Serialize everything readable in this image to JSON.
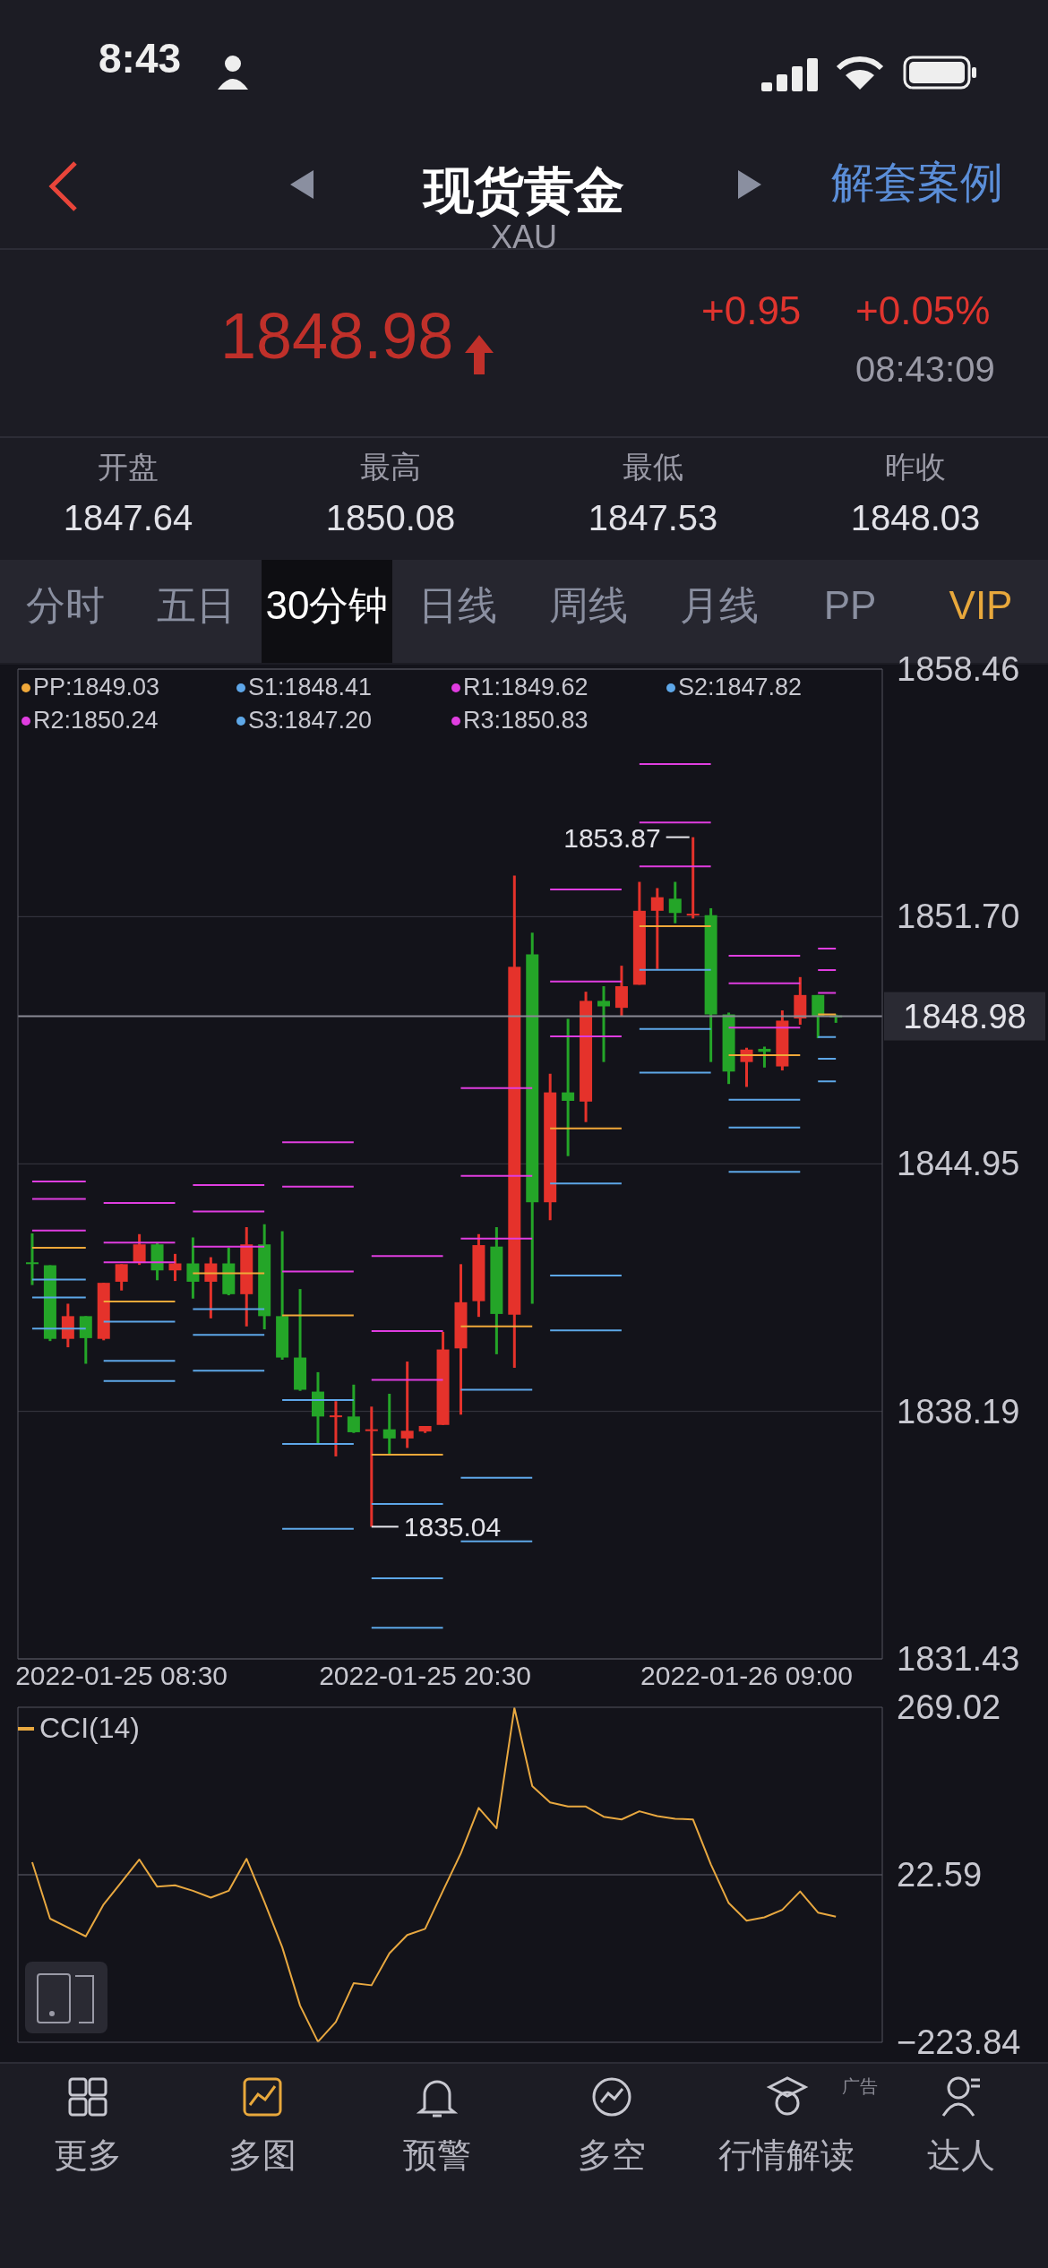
{
  "chart_data": [
    {
      "type": "candlestick",
      "title": "现货黄金",
      "subtitle": "XAU",
      "categories": [
        null,
        null,
        null,
        null,
        null,
        "2022-01-25 08:30",
        null,
        null,
        null,
        null,
        null,
        null,
        null,
        null,
        null,
        null,
        null,
        null,
        null,
        null,
        null,
        null,
        "2022-01-25 20:30",
        null,
        null,
        null,
        null,
        null,
        null,
        null,
        null,
        null,
        null,
        null,
        null,
        null,
        null,
        null,
        null,
        null,
        "2022-01-26 09:00",
        null,
        null,
        null,
        null,
        null
      ],
      "ohlc": [
        [
          1842.26,
          1843.05,
          1841.64,
          1842.22
        ],
        [
          1842.18,
          1842.18,
          1840.11,
          1840.17
        ],
        [
          1840.17,
          1841.13,
          1839.94,
          1840.79
        ],
        [
          1840.79,
          1840.79,
          1839.49,
          1840.19
        ],
        [
          1840.17,
          1841.7,
          1840.13,
          1841.7
        ],
        [
          1841.73,
          1842.21,
          1841.49,
          1842.21
        ],
        [
          1842.24,
          1843.03,
          1842.19,
          1842.75
        ],
        [
          1842.75,
          1842.81,
          1841.77,
          1842.04
        ],
        [
          1842.04,
          1842.49,
          1841.75,
          1842.23
        ],
        [
          1842.23,
          1842.94,
          1841.27,
          1841.73
        ],
        [
          1841.73,
          1842.4,
          1840.73,
          1842.23
        ],
        [
          1842.23,
          1842.66,
          1841.36,
          1841.39
        ],
        [
          1841.39,
          1843.22,
          1840.51,
          1842.75
        ],
        [
          1842.75,
          1843.3,
          1840.43,
          1840.79
        ],
        [
          1840.79,
          1843.11,
          1839.6,
          1839.66
        ],
        [
          1839.66,
          1841.53,
          1838.75,
          1838.78
        ],
        [
          1838.73,
          1839.26,
          1837.28,
          1838.05
        ],
        [
          1838.04,
          1838.47,
          1836.96,
          1838.08
        ],
        [
          1838.05,
          1838.92,
          1837.6,
          1837.62
        ],
        [
          1837.68,
          1838.32,
          1835.04,
          1837.7
        ],
        [
          1837.7,
          1838.67,
          1837.03,
          1837.45
        ],
        [
          1837.45,
          1839.55,
          1837.19,
          1837.66
        ],
        [
          1837.64,
          1837.79,
          1837.6,
          1837.79
        ],
        [
          1837.82,
          1840.36,
          1837.82,
          1839.88
        ],
        [
          1839.91,
          1842.21,
          1838.1,
          1841.17
        ],
        [
          1841.2,
          1843.03,
          1840.77,
          1842.73
        ],
        [
          1842.69,
          1843.22,
          1839.75,
          1840.85
        ],
        [
          1840.83,
          1852.82,
          1839.38,
          1850.33
        ],
        [
          1850.67,
          1851.26,
          1841.13,
          1843.9
        ],
        [
          1843.9,
          1847.41,
          1843.41,
          1846.9
        ],
        [
          1846.9,
          1848.91,
          1845.16,
          1846.67
        ],
        [
          1846.65,
          1849.65,
          1846.09,
          1849.4
        ],
        [
          1849.4,
          1849.8,
          1847.73,
          1849.25
        ],
        [
          1849.21,
          1850.36,
          1848.97,
          1849.8
        ],
        [
          1849.84,
          1852.65,
          1849.84,
          1851.86
        ],
        [
          1851.86,
          1852.48,
          1850.27,
          1852.23
        ],
        [
          1852.19,
          1852.65,
          1851.52,
          1851.8
        ],
        [
          1851.74,
          1853.87,
          1851.65,
          1851.78
        ],
        [
          1851.74,
          1851.93,
          1847.73,
          1849.03
        ],
        [
          1849.03,
          1849.08,
          1847.13,
          1847.47
        ],
        [
          1847.73,
          1848.12,
          1847.05,
          1848.07
        ],
        [
          1848.09,
          1848.15,
          1847.58,
          1848.01
        ],
        [
          1847.61,
          1849.14,
          1847.5,
          1848.86
        ],
        [
          1848.92,
          1850.05,
          1848.75,
          1849.56
        ],
        [
          1849.56,
          1849.56,
          1848.38,
          1848.97
        ],
        [
          1849.0,
          1849.03,
          1848.8,
          1848.98
        ]
      ],
      "colors": [
        "#24a528",
        "#24a528",
        "#e5322b",
        "#24a528",
        "#e5322b",
        "#e5322b",
        "#e5322b",
        "#24a528",
        "#e5322b",
        "#24a528",
        "#e5322b",
        "#24a528",
        "#e5322b",
        "#24a528",
        "#24a528",
        "#24a528",
        "#24a528",
        "#e5322b",
        "#24a528",
        "#e5322b",
        "#24a528",
        "#e5322b",
        "#e5322b",
        "#e5322b",
        "#e5322b",
        "#e5322b",
        "#24a528",
        "#e5322b",
        "#24a528",
        "#e5322b",
        "#24a528",
        "#e5322b",
        "#24a528",
        "#e5322b",
        "#e5322b",
        "#e5322b",
        "#24a528",
        "#e5322b",
        "#24a528",
        "#24a528",
        "#e5322b",
        "#24a528",
        "#e5322b",
        "#e5322b",
        "#24a528",
        "#24a528"
      ],
      "series": [
        {
          "name": "PP:1849.03",
          "type": "line",
          "color": "#f0a83a",
          "values": [
            null,
            null,
            null,
            null,
            1841.19,
            1841.19,
            1841.19,
            1841.19,
            1841.19,
            null,
            null,
            null,
            null,
            null,
            1840.81,
            1840.81,
            1840.81,
            1840.81,
            1840.81,
            null,
            null,
            null,
            null,
            null,
            1840.51,
            1840.51,
            1840.51,
            1840.51,
            1840.51,
            null,
            null,
            null,
            null,
            null,
            1851.44,
            1851.44,
            1851.44,
            1851.44,
            1851.44,
            null,
            null,
            null,
            null,
            null,
            1849.03,
            1849.03
          ]
        },
        {
          "name": "S1:1848.41",
          "type": "line",
          "color": "#5ea6e8",
          "values": [
            null,
            null,
            null,
            null,
            1840.64,
            1840.64,
            1840.64,
            1840.64,
            1840.64,
            null,
            null,
            null,
            null,
            null,
            1838.5,
            1838.5,
            1838.5,
            1838.5,
            1838.5,
            null,
            null,
            null,
            null,
            null,
            1838.78,
            1838.78,
            1838.78,
            1838.78,
            1838.78,
            null,
            null,
            null,
            null,
            null,
            1850.25,
            1850.25,
            1850.25,
            1850.25,
            1850.25,
            null,
            null,
            null,
            null,
            null,
            1848.41,
            1848.41
          ]
        },
        {
          "name": "R1:1849.62",
          "type": "line",
          "color": "#e03ce0",
          "values": [
            null,
            null,
            null,
            null,
            1842.26,
            1842.26,
            1842.26,
            1842.26,
            1842.26,
            null,
            null,
            null,
            null,
            null,
            1842.01,
            1842.01,
            1842.01,
            1842.01,
            1842.01,
            null,
            null,
            null,
            null,
            null,
            1842.91,
            1842.91,
            1842.91,
            1842.91,
            1842.91,
            null,
            null,
            null,
            null,
            null,
            1853.07,
            1853.07,
            1853.07,
            1853.07,
            1853.07,
            null,
            null,
            null,
            null,
            null,
            1849.62,
            1849.62
          ]
        },
        {
          "name": "S2:1847.82",
          "type": "line",
          "color": "#5ea7e8",
          "values": [
            null,
            null,
            null,
            null,
            1839.57,
            1839.57,
            1839.57,
            1839.57,
            1839.57,
            null,
            null,
            null,
            null,
            null,
            1837.3,
            1837.3,
            1837.3,
            1837.3,
            1837.3,
            null,
            null,
            null,
            null,
            null,
            1836.38,
            1836.38,
            1836.38,
            1836.38,
            1836.38,
            null,
            null,
            null,
            null,
            null,
            1848.63,
            1848.63,
            1848.63,
            1848.63,
            1848.63,
            null,
            null,
            null,
            null,
            null,
            1847.82,
            1847.82
          ]
        },
        {
          "name": "R2:1850.24",
          "type": "line",
          "color": "#e03de0",
          "values": [
            null,
            null,
            null,
            null,
            1842.8,
            1842.8,
            1842.8,
            1842.8,
            1842.8,
            null,
            null,
            null,
            null,
            null,
            1844.33,
            1844.33,
            1844.33,
            1844.33,
            1844.33,
            null,
            null,
            null,
            null,
            null,
            1844.62,
            1844.62,
            1844.62,
            1844.62,
            1844.62,
            null,
            null,
            null,
            null,
            null,
            1854.27,
            1854.27,
            1854.27,
            1854.27,
            1854.27,
            null,
            null,
            null,
            null,
            null,
            1850.24,
            1850.24
          ]
        },
        {
          "name": "S3:1847.20",
          "type": "line",
          "color": "#5ea8e8",
          "values": [
            null,
            null,
            null,
            null,
            1839.02,
            1839.02,
            1839.02,
            1839.02,
            1839.02,
            null,
            null,
            null,
            null,
            null,
            1834.98,
            1834.98,
            1834.98,
            1834.98,
            1834.98,
            null,
            null,
            null,
            null,
            null,
            1834.64,
            1834.64,
            1834.64,
            1834.64,
            1834.64,
            null,
            null,
            null,
            null,
            null,
            1847.44,
            1847.44,
            1847.44,
            1847.44,
            1847.44,
            null,
            null,
            null,
            null,
            null,
            1847.2,
            1847.2
          ]
        },
        {
          "name": "R3:1850.83",
          "type": "line",
          "color": "#e03ee0",
          "values": [
            null,
            null,
            null,
            null,
            1843.88,
            1843.88,
            1843.88,
            1843.88,
            1843.88,
            null,
            null,
            null,
            null,
            null,
            1845.54,
            1845.54,
            1845.54,
            1845.54,
            1845.54,
            null,
            null,
            null,
            null,
            null,
            1847.02,
            1847.02,
            1847.02,
            1847.02,
            1847.02,
            null,
            null,
            null,
            null,
            null,
            1855.87,
            1855.87,
            1855.87,
            1855.87,
            1855.87,
            null,
            null,
            null,
            null,
            null,
            1850.83,
            1850.83
          ]
        },
        {
          "type": "line",
          "color": "#f0a839",
          "values": [
            1842.66,
            1842.66,
            1842.66,
            1842.66,
            null,
            null,
            null,
            null,
            null,
            1841.96,
            1841.96,
            1841.96,
            1841.96,
            1841.96,
            null,
            null,
            null,
            null,
            null,
            1837.01,
            1837.01,
            1837.01,
            1837.01,
            1837.01,
            null,
            null,
            null,
            null,
            null,
            1845.92,
            1845.92,
            1845.92,
            1845.92,
            1845.92,
            null,
            null,
            null,
            null,
            null,
            1847.92,
            1847.92,
            1847.92,
            1847.92,
            1847.92,
            null,
            null
          ]
        },
        {
          "type": "line",
          "color": "#5da6e8",
          "values": [
            1841.79,
            1841.79,
            1841.79,
            1841.79,
            null,
            null,
            null,
            null,
            null,
            1840.98,
            1840.98,
            1840.98,
            1840.98,
            1840.98,
            null,
            null,
            null,
            null,
            null,
            1835.66,
            1835.66,
            1835.66,
            1835.66,
            1835.66,
            null,
            null,
            null,
            null,
            null,
            1844.41,
            1844.41,
            1844.41,
            1844.41,
            1844.41,
            null,
            null,
            null,
            null,
            null,
            1846.7,
            1846.7,
            1846.7,
            1846.7,
            1846.7,
            null,
            null
          ]
        },
        {
          "type": "line",
          "color": "#df3ce0",
          "values": [
            1843.13,
            1843.13,
            1843.13,
            1843.13,
            null,
            null,
            null,
            null,
            null,
            1842.69,
            1842.69,
            1842.69,
            1842.69,
            1842.69,
            null,
            null,
            null,
            null,
            null,
            1839.05,
            1839.05,
            1839.05,
            1839.05,
            1839.05,
            null,
            null,
            null,
            null,
            null,
            1848.43,
            1848.43,
            1848.43,
            1848.43,
            1848.43,
            null,
            null,
            null,
            null,
            null,
            1848.67,
            1848.67,
            1848.67,
            1848.67,
            1848.67,
            null,
            null
          ]
        },
        {
          "type": "line",
          "color": "#5da7e8",
          "values": [
            1841.3,
            1841.3,
            1841.3,
            1841.3,
            null,
            null,
            null,
            null,
            null,
            1840.28,
            1840.28,
            1840.28,
            1840.28,
            1840.28,
            null,
            null,
            null,
            null,
            null,
            1833.63,
            1833.63,
            1833.63,
            1833.63,
            1833.63,
            null,
            null,
            null,
            null,
            null,
            1841.9,
            1841.9,
            1841.9,
            1841.9,
            1841.9,
            null,
            null,
            null,
            null,
            null,
            1845.94,
            1845.94,
            1845.94,
            1845.94,
            1845.94,
            null,
            null
          ]
        },
        {
          "type": "line",
          "color": "#df3de0",
          "values": [
            1843.99,
            1843.99,
            1843.99,
            1843.99,
            null,
            null,
            null,
            null,
            null,
            1843.65,
            1843.65,
            1843.65,
            1843.65,
            1843.65,
            null,
            null,
            null,
            null,
            null,
            1840.38,
            1840.38,
            1840.38,
            1840.38,
            1840.38,
            null,
            null,
            null,
            null,
            null,
            1849.93,
            1849.93,
            1849.93,
            1849.93,
            1849.93,
            null,
            null,
            null,
            null,
            null,
            1849.88,
            1849.88,
            1849.88,
            1849.88,
            1849.88,
            null,
            null
          ]
        },
        {
          "type": "line",
          "color": "#5da8e8",
          "values": [
            1840.45,
            1840.45,
            1840.45,
            1840.45,
            null,
            null,
            null,
            null,
            null,
            1839.3,
            1839.3,
            1839.3,
            1839.3,
            1839.3,
            null,
            null,
            null,
            null,
            null,
            1832.28,
            1832.28,
            1832.28,
            1832.28,
            1832.28,
            null,
            null,
            null,
            null,
            null,
            1840.4,
            1840.4,
            1840.4,
            1840.4,
            1840.4,
            null,
            null,
            null,
            null,
            null,
            1844.73,
            1844.73,
            1844.73,
            1844.73,
            1844.73,
            null,
            null
          ]
        },
        {
          "type": "line",
          "color": "#df3ee0",
          "values": [
            1844.47,
            1844.47,
            1844.47,
            1844.47,
            null,
            null,
            null,
            null,
            null,
            1844.37,
            1844.37,
            1844.37,
            1844.37,
            1844.37,
            null,
            null,
            null,
            null,
            null,
            1842.43,
            1842.43,
            1842.43,
            1842.43,
            1842.43,
            null,
            null,
            null,
            null,
            null,
            1852.44,
            1852.44,
            1852.44,
            1852.44,
            1852.44,
            null,
            null,
            null,
            null,
            null,
            1850.63,
            1850.63,
            1850.63,
            1850.63,
            1850.63,
            null,
            null
          ]
        }
      ],
      "ylim": [
        1831.43,
        1858.46
      ],
      "yticks": [
        1858.46,
        {
          "value": 1851.7,
          "label": "1851.70"
        },
        1844.95,
        1838.19,
        1831.43
      ],
      "grid": "y",
      "legend": "top left",
      "ref_lines": [
        {
          "axis": "y",
          "value": 1848.98,
          "label": "1848.98",
          "color": "#8a8a94"
        }
      ],
      "annotations": [
        "8:43",
        "解套案例",
        "1848.98",
        "+0.95",
        "+0.05%",
        "08:43:09",
        "开盘",
        "1847.64",
        "最高",
        "1850.08",
        "最低",
        "1847.53",
        "昨收",
        "1848.03",
        "分时",
        "五日",
        "30分钟",
        "日线",
        "周线",
        "月线",
        "PP",
        "VIP",
        "更多",
        "多图",
        "预警",
        "多空",
        "行情解读",
        "达人",
        "广告",
        "1853.87",
        "1835.04"
      ]
    },
    {
      "type": "line",
      "categories": [
        null,
        null,
        null,
        null,
        null,
        null,
        null,
        null,
        null,
        null,
        null,
        null,
        null,
        null,
        null,
        null,
        null,
        null,
        null,
        null,
        null,
        null,
        null,
        null,
        null,
        null,
        null,
        null,
        null,
        null,
        null,
        null,
        null,
        null,
        null,
        null,
        null,
        null,
        null,
        null,
        null,
        null,
        null,
        null,
        null,
        null
      ],
      "series": [
        {
          "name": "CCI(14)",
          "color": "#e8a840",
          "values": [
            41,
            -42,
            -55,
            -68,
            -21,
            12,
            45,
            5,
            7,
            -1,
            -11,
            -1,
            46,
            -17,
            -84,
            -170,
            -223,
            -194,
            -137,
            -140,
            -93,
            -66,
            -57,
            -1,
            54,
            121,
            91,
            268,
            153,
            129,
            123,
            123,
            108,
            104,
            116,
            109,
            105,
            104,
            38,
            -19,
            -45,
            -40,
            -29,
            -2,
            -33,
            -39
          ]
        }
      ],
      "ylim": [
        -223.84,
        269.02
      ],
      "yticks": [
        269.02,
        22.59,
        {
          "value": -223.84,
          "label": "−223.84"
        }
      ],
      "ref_lines": [
        {
          "axis": "y",
          "value": 22.59,
          "color": "#3a3a44"
        }
      ],
      "tick_labels": "y"
    }
  ]
}
